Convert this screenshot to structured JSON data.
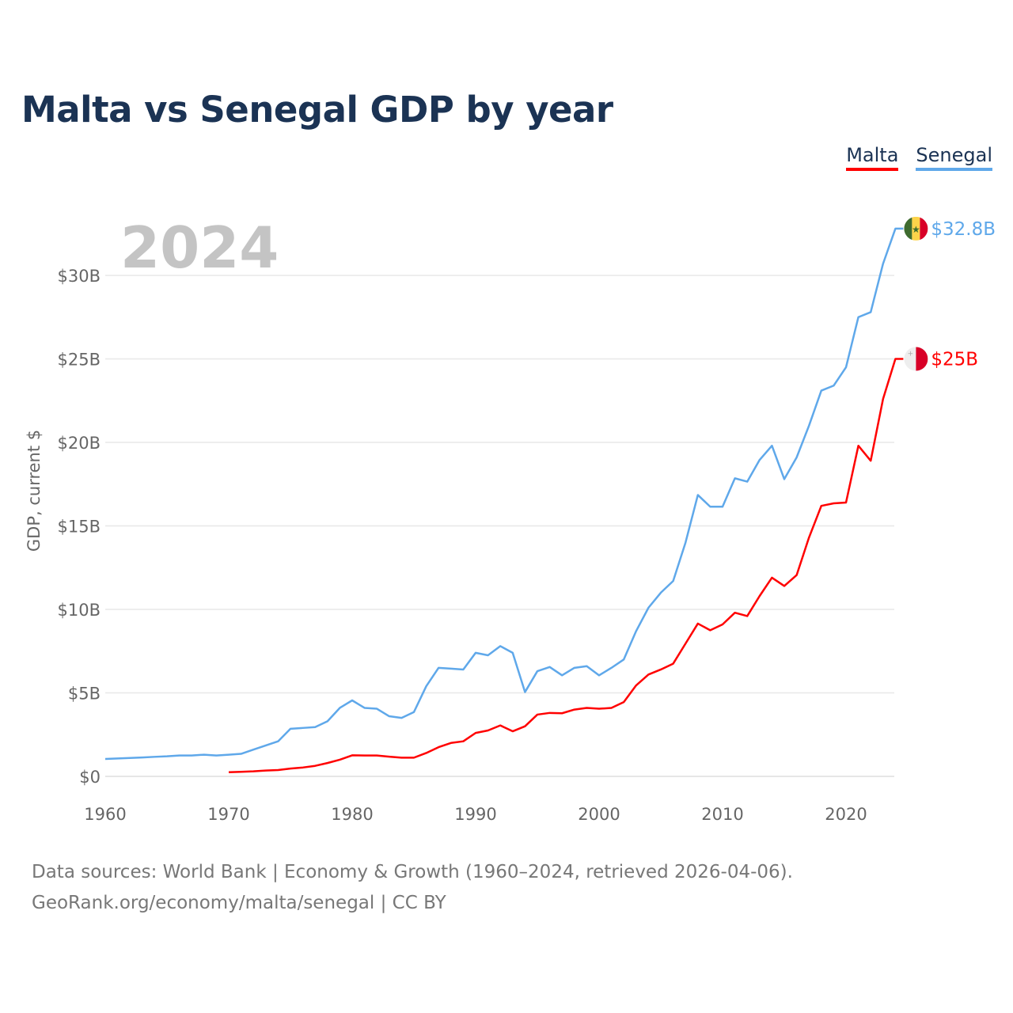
{
  "chart_data": {
    "type": "line",
    "title": "Malta vs Senegal GDP by year",
    "ylabel": "GDP, current $",
    "xlabel": "",
    "year_label": "2024",
    "xlim": [
      1960,
      2024
    ],
    "ylim": [
      0,
      33
    ],
    "x_ticks": [
      "1960",
      "1970",
      "1980",
      "1990",
      "2000",
      "2010",
      "2020"
    ],
    "y_ticks": [
      {
        "v": 0,
        "label": "$0"
      },
      {
        "v": 5,
        "label": "$5B"
      },
      {
        "v": 10,
        "label": "$10B"
      },
      {
        "v": 15,
        "label": "$15B"
      },
      {
        "v": 20,
        "label": "$20B"
      },
      {
        "v": 25,
        "label": "$25B"
      },
      {
        "v": 30,
        "label": "$30B"
      }
    ],
    "grid": true,
    "legend_position": "top-right",
    "series": [
      {
        "name": "Malta",
        "color": "#ff0000",
        "start_year": 1970,
        "end_label": "$25B",
        "flag": "malta",
        "values": [
          0.25,
          0.27,
          0.3,
          0.35,
          0.38,
          0.47,
          0.53,
          0.63,
          0.8,
          1.0,
          1.26,
          1.25,
          1.25,
          1.18,
          1.12,
          1.12,
          1.4,
          1.75,
          2.0,
          2.1,
          2.6,
          2.75,
          3.05,
          2.7,
          3.0,
          3.7,
          3.8,
          3.78,
          4.0,
          4.1,
          4.05,
          4.1,
          4.45,
          5.45,
          6.1,
          6.4,
          6.75,
          7.95,
          9.15,
          8.75,
          9.1,
          9.8,
          9.6,
          10.8,
          11.9,
          11.4,
          12.05,
          14.3,
          16.2,
          16.35,
          16.4,
          19.8,
          18.9,
          22.6,
          25.0
        ]
      },
      {
        "name": "Senegal",
        "color": "#5fa8ea",
        "start_year": 1960,
        "end_label": "$32.8B",
        "flag": "senegal",
        "values": [
          1.04,
          1.07,
          1.1,
          1.13,
          1.17,
          1.2,
          1.25,
          1.25,
          1.3,
          1.25,
          1.3,
          1.35,
          1.6,
          1.85,
          2.1,
          2.85,
          2.9,
          2.95,
          3.3,
          4.1,
          4.55,
          4.1,
          4.05,
          3.6,
          3.5,
          3.85,
          5.4,
          6.5,
          6.45,
          6.4,
          7.4,
          7.25,
          7.8,
          7.4,
          5.05,
          6.3,
          6.55,
          6.05,
          6.5,
          6.6,
          6.05,
          6.5,
          7.0,
          8.7,
          10.1,
          11.0,
          11.7,
          14.0,
          16.85,
          16.15,
          16.15,
          17.85,
          17.65,
          18.95,
          19.8,
          17.8,
          19.1,
          21.0,
          23.1,
          23.4,
          24.5,
          27.5,
          27.8,
          30.7,
          32.8
        ]
      }
    ]
  },
  "footer": {
    "line1": "Data sources: World Bank | Economy & Growth (1960–2024, retrieved 2026-04-06).",
    "line2": "GeoRank.org/economy/malta/senegal | CC BY"
  }
}
